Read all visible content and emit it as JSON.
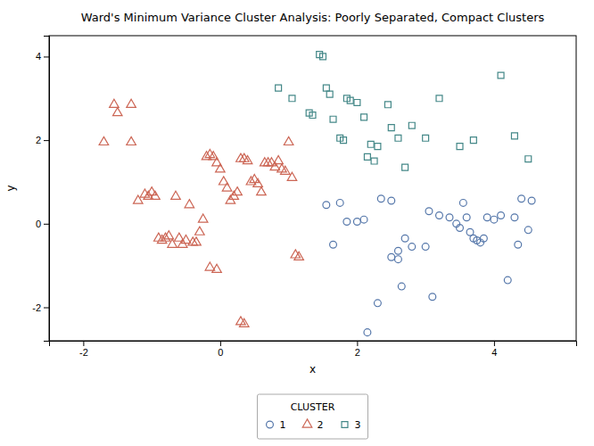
{
  "chart_data": {
    "type": "scatter",
    "title": "Ward's Minimum Variance Cluster Analysis: Poorly Separated, Compact Clusters",
    "xlabel": "x",
    "ylabel": "y",
    "xlim": [
      -2.5,
      5.2
    ],
    "ylim": [
      -2.8,
      4.5
    ],
    "xticks": [
      -2,
      0,
      2,
      4
    ],
    "yticks": [
      -2,
      0,
      2,
      4
    ],
    "grid": false,
    "legend": "bottom",
    "legend_title": "CLUSTER",
    "series": [
      {
        "name": "1",
        "color": "#5577AA",
        "marker": "circle",
        "x": [
          1.55,
          1.75,
          1.85,
          2.0,
          1.65,
          2.1,
          2.35,
          2.5,
          2.7,
          3.05,
          3.2,
          3.35,
          3.45,
          3.5,
          3.55,
          3.6,
          3.65,
          3.7,
          3.75,
          3.8,
          3.85,
          3.9,
          4.0,
          4.1,
          4.3,
          4.4,
          4.5,
          4.55,
          2.6,
          2.8,
          2.15,
          2.3,
          3.0,
          4.2,
          4.35,
          2.5,
          2.6,
          2.65,
          3.1
        ],
        "values": [
          0.45,
          0.5,
          0.05,
          0.05,
          -0.5,
          0.1,
          0.6,
          0.55,
          -0.35,
          0.3,
          0.2,
          0.15,
          0.0,
          -0.1,
          0.5,
          0.15,
          -0.2,
          -0.35,
          -0.4,
          -0.45,
          -0.35,
          0.15,
          0.1,
          0.2,
          0.15,
          0.6,
          -0.15,
          0.55,
          -0.65,
          -0.55,
          -2.6,
          -1.9,
          -0.55,
          -1.35,
          -0.5,
          -0.8,
          -0.85,
          -1.5,
          -1.75
        ]
      },
      {
        "name": "2",
        "color": "#CC6655",
        "marker": "triangle",
        "x": [
          -1.7,
          -1.55,
          -1.5,
          -1.3,
          -1.3,
          -1.2,
          -1.1,
          -1.05,
          -1.0,
          -0.95,
          -0.9,
          -0.85,
          -0.8,
          -0.75,
          -0.7,
          -0.65,
          -0.6,
          -0.55,
          -0.5,
          -0.45,
          -0.4,
          -0.35,
          -0.3,
          -0.25,
          -0.2,
          -0.15,
          -0.1,
          -0.05,
          0.0,
          0.05,
          0.1,
          0.15,
          0.2,
          0.25,
          0.3,
          0.35,
          0.4,
          0.45,
          0.5,
          0.55,
          0.6,
          0.65,
          0.7,
          0.75,
          0.8,
          0.85,
          0.9,
          0.95,
          1.0,
          1.05,
          1.1,
          1.15,
          0.3,
          0.35,
          -0.05,
          -0.15
        ],
        "values": [
          1.95,
          2.85,
          2.65,
          2.85,
          1.95,
          0.55,
          0.7,
          0.65,
          0.75,
          0.65,
          -0.35,
          -0.4,
          -0.35,
          -0.3,
          -0.5,
          0.65,
          -0.35,
          -0.5,
          -0.4,
          0.45,
          -0.45,
          -0.45,
          -0.2,
          0.1,
          1.6,
          1.65,
          1.6,
          1.45,
          1.3,
          1.0,
          0.85,
          0.55,
          0.65,
          0.75,
          1.55,
          1.55,
          1.5,
          1.0,
          1.05,
          0.95,
          0.75,
          1.45,
          1.45,
          1.45,
          1.35,
          1.5,
          1.3,
          1.25,
          1.95,
          1.1,
          -0.75,
          -0.8,
          -2.35,
          -2.4,
          -1.1,
          -1.05
        ]
      },
      {
        "name": "3",
        "color": "#448888",
        "marker": "square",
        "x": [
          0.85,
          1.05,
          1.3,
          1.35,
          1.45,
          1.5,
          1.55,
          1.6,
          1.65,
          1.75,
          1.8,
          1.85,
          1.9,
          2.0,
          2.1,
          2.2,
          2.3,
          2.45,
          2.5,
          2.6,
          2.7,
          2.8,
          3.0,
          3.2,
          3.5,
          3.7,
          4.1,
          4.3,
          4.5,
          2.15,
          2.25
        ],
        "values": [
          3.25,
          3.0,
          2.65,
          2.6,
          4.05,
          4.0,
          3.25,
          3.1,
          2.5,
          2.05,
          2.0,
          3.0,
          2.95,
          2.9,
          2.55,
          1.9,
          1.85,
          2.85,
          2.3,
          2.05,
          1.35,
          2.35,
          2.05,
          3.0,
          1.85,
          2.0,
          3.55,
          2.1,
          1.55,
          1.6,
          1.5
        ]
      }
    ]
  }
}
